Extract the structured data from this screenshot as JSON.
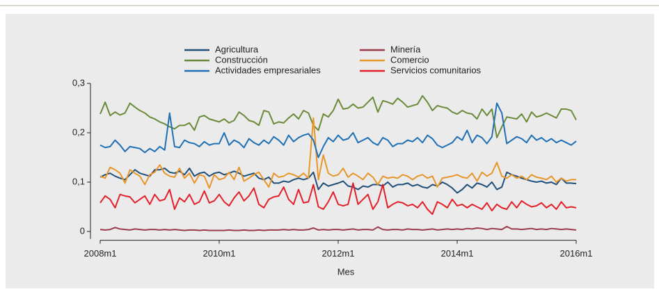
{
  "chart_data": {
    "type": "line",
    "x_label": "Mes",
    "categories": [
      "2008m1",
      null,
      null,
      null,
      null,
      null,
      null,
      null,
      null,
      null,
      null,
      null,
      null,
      null,
      null,
      null,
      null,
      null,
      null,
      null,
      null,
      null,
      null,
      null,
      "2010m1",
      null,
      null,
      null,
      null,
      null,
      null,
      null,
      null,
      null,
      null,
      null,
      null,
      null,
      null,
      null,
      null,
      null,
      null,
      null,
      null,
      null,
      null,
      null,
      "2012m1",
      null,
      null,
      null,
      null,
      null,
      null,
      null,
      null,
      null,
      null,
      null,
      null,
      null,
      null,
      null,
      null,
      null,
      null,
      null,
      null,
      null,
      null,
      null,
      "2014m1",
      null,
      null,
      null,
      null,
      null,
      null,
      null,
      null,
      null,
      null,
      null,
      null,
      null,
      null,
      null,
      null,
      null,
      null,
      null,
      null,
      null,
      null,
      null,
      "2016m1"
    ],
    "ylim": [
      -0.015,
      0.3
    ],
    "yticks": [
      {
        "value": 0,
        "label": "0"
      },
      {
        "value": 0.1,
        "label": "0,1"
      },
      {
        "value": 0.2,
        "label": "0,2"
      },
      {
        "value": 0.3,
        "label": "0,3"
      }
    ],
    "grid": false,
    "legend": "top",
    "series": [
      {
        "name": "Agricultura",
        "color": "#1f4e79",
        "values": [
          0.11,
          0.115,
          0.118,
          0.112,
          0.108,
          0.105,
          0.115,
          0.125,
          0.118,
          0.115,
          0.112,
          0.125,
          0.125,
          0.128,
          0.12,
          0.118,
          0.122,
          0.115,
          0.128,
          0.112,
          0.118,
          0.12,
          0.112,
          0.118,
          0.12,
          0.115,
          0.118,
          0.122,
          0.118,
          0.112,
          0.115,
          0.118,
          0.108,
          0.105,
          0.11,
          0.098,
          0.098,
          0.102,
          0.1,
          0.105,
          0.108,
          0.105,
          0.108,
          0.12,
          0.085,
          0.098,
          0.092,
          0.095,
          0.098,
          0.102,
          0.092,
          0.09,
          0.085,
          0.092,
          0.09,
          0.095,
          0.095,
          0.092,
          0.1,
          0.09,
          0.095,
          0.095,
          0.098,
          0.092,
          0.095,
          0.09,
          0.088,
          0.095,
          0.092,
          0.1,
          0.095,
          0.088,
          0.078,
          0.085,
          0.095,
          0.088,
          0.098,
          0.095,
          0.09,
          0.1,
          0.085,
          0.09,
          0.12,
          0.115,
          0.112,
          0.108,
          0.105,
          0.102,
          0.1,
          0.102,
          0.098,
          0.1,
          0.095,
          0.108,
          0.098,
          0.098,
          0.097
        ]
      },
      {
        "name": "Minería",
        "color": "#9b3a4a",
        "values": [
          0.004,
          0.003,
          0.004,
          0.008,
          0.005,
          0.004,
          0.003,
          0.005,
          0.004,
          0.003,
          0.004,
          0.004,
          0.003,
          0.004,
          0.003,
          0.004,
          0.003,
          0.002,
          0.003,
          0.003,
          0.002,
          0.003,
          0.002,
          0.002,
          0.002,
          0.002,
          0.003,
          0.002,
          0.002,
          0.003,
          0.002,
          0.002,
          0.003,
          0.002,
          0.003,
          0.003,
          0.003,
          0.004,
          0.003,
          0.004,
          0.003,
          0.003,
          0.004,
          0.007,
          0.003,
          0.004,
          0.003,
          0.004,
          0.004,
          0.003,
          0.004,
          0.005,
          0.003,
          0.004,
          0.004,
          0.003,
          0.009,
          0.004,
          0.003,
          0.004,
          0.004,
          0.003,
          0.005,
          0.004,
          0.004,
          0.003,
          0.004,
          0.005,
          0.003,
          0.004,
          0.005,
          0.004,
          0.005,
          0.004,
          0.006,
          0.005,
          0.007,
          0.006,
          0.004,
          0.006,
          0.005,
          0.004,
          0.01,
          0.005,
          0.005,
          0.004,
          0.005,
          0.006,
          0.004,
          0.005,
          0.004,
          0.006,
          0.005,
          0.004,
          0.005,
          0.004,
          0.003
        ]
      },
      {
        "name": "Construcción",
        "color": "#6a8a3a",
        "values": [
          0.238,
          0.262,
          0.235,
          0.242,
          0.236,
          0.24,
          0.26,
          0.252,
          0.245,
          0.24,
          0.232,
          0.228,
          0.222,
          0.218,
          0.212,
          0.208,
          0.215,
          0.215,
          0.22,
          0.205,
          0.232,
          0.235,
          0.228,
          0.225,
          0.222,
          0.228,
          0.22,
          0.225,
          0.242,
          0.235,
          0.225,
          0.222,
          0.215,
          0.245,
          0.242,
          0.218,
          0.222,
          0.22,
          0.23,
          0.238,
          0.228,
          0.245,
          0.24,
          0.215,
          0.205,
          0.238,
          0.232,
          0.245,
          0.268,
          0.248,
          0.25,
          0.258,
          0.25,
          0.252,
          0.262,
          0.272,
          0.242,
          0.265,
          0.262,
          0.258,
          0.27,
          0.262,
          0.252,
          0.255,
          0.258,
          0.275,
          0.262,
          0.245,
          0.255,
          0.252,
          0.25,
          0.242,
          0.238,
          0.245,
          0.24,
          0.238,
          0.228,
          0.248,
          0.235,
          0.248,
          0.19,
          0.212,
          0.232,
          0.23,
          0.228,
          0.238,
          0.222,
          0.242,
          0.232,
          0.235,
          0.24,
          0.235,
          0.23,
          0.248,
          0.248,
          0.245,
          0.226
        ]
      },
      {
        "name": "Comercio",
        "color": "#e8962a",
        "values": [
          0.112,
          0.108,
          0.13,
          0.125,
          0.118,
          0.098,
          0.125,
          0.118,
          0.112,
          0.095,
          0.115,
          0.12,
          0.135,
          0.118,
          0.112,
          0.11,
          0.128,
          0.108,
          0.118,
          0.098,
          0.115,
          0.112,
          0.088,
          0.115,
          0.105,
          0.108,
          0.12,
          0.105,
          0.13,
          0.102,
          0.108,
          0.115,
          0.12,
          0.105,
          0.09,
          0.118,
          0.11,
          0.112,
          0.118,
          0.115,
          0.11,
          0.118,
          0.108,
          0.23,
          0.105,
          0.155,
          0.118,
          0.112,
          0.115,
          0.128,
          0.11,
          0.118,
          0.112,
          0.105,
          0.118,
          0.11,
          0.095,
          0.112,
          0.108,
          0.11,
          0.108,
          0.115,
          0.112,
          0.105,
          0.112,
          0.115,
          0.108,
          0.112,
          0.09,
          0.108,
          0.11,
          0.112,
          0.115,
          0.11,
          0.108,
          0.118,
          0.102,
          0.12,
          0.112,
          0.118,
          0.14,
          0.112,
          0.108,
          0.115,
          0.108,
          0.112,
          0.105,
          0.115,
          0.11,
          0.108,
          0.105,
          0.112,
          0.1,
          0.108,
          0.102,
          0.105,
          0.105
        ]
      },
      {
        "name": "Actividades empresariales",
        "color": "#1f6fb5",
        "values": [
          0.175,
          0.17,
          0.172,
          0.185,
          0.175,
          0.162,
          0.172,
          0.17,
          0.168,
          0.16,
          0.168,
          0.162,
          0.172,
          0.165,
          0.24,
          0.172,
          0.17,
          0.185,
          0.18,
          0.178,
          0.172,
          0.182,
          0.175,
          0.178,
          0.178,
          0.2,
          0.175,
          0.185,
          0.18,
          0.17,
          0.188,
          0.18,
          0.175,
          0.185,
          0.178,
          0.192,
          0.185,
          0.175,
          0.195,
          0.182,
          0.19,
          0.195,
          0.198,
          0.185,
          0.15,
          0.172,
          0.19,
          0.182,
          0.195,
          0.185,
          0.188,
          0.2,
          0.18,
          0.185,
          0.19,
          0.18,
          0.175,
          0.19,
          0.185,
          0.172,
          0.178,
          0.178,
          0.185,
          0.182,
          0.19,
          0.18,
          0.195,
          0.188,
          0.175,
          0.17,
          0.175,
          0.18,
          0.192,
          0.185,
          0.205,
          0.18,
          0.195,
          0.19,
          0.178,
          0.192,
          0.26,
          0.24,
          0.178,
          0.185,
          0.192,
          0.188,
          0.18,
          0.195,
          0.185,
          0.19,
          0.182,
          0.188,
          0.18,
          0.185,
          0.18,
          0.175,
          0.183
        ]
      },
      {
        "name": "Servicios comunitarios",
        "color": "#e3202a",
        "values": [
          0.058,
          0.072,
          0.065,
          0.048,
          0.075,
          0.072,
          0.07,
          0.058,
          0.065,
          0.072,
          0.055,
          0.075,
          0.062,
          0.065,
          0.085,
          0.045,
          0.068,
          0.06,
          0.075,
          0.055,
          0.06,
          0.082,
          0.058,
          0.062,
          0.075,
          0.06,
          0.052,
          0.068,
          0.08,
          0.062,
          0.072,
          0.088,
          0.055,
          0.048,
          0.065,
          0.07,
          0.072,
          0.09,
          0.065,
          0.055,
          0.085,
          0.058,
          0.06,
          0.095,
          0.05,
          0.045,
          0.06,
          0.08,
          0.055,
          0.052,
          0.055,
          0.098,
          0.055,
          0.065,
          0.075,
          0.045,
          0.06,
          0.095,
          0.048,
          0.055,
          0.06,
          0.058,
          0.052,
          0.055,
          0.048,
          0.06,
          0.045,
          0.035,
          0.06,
          0.055,
          0.048,
          0.065,
          0.052,
          0.055,
          0.048,
          0.055,
          0.05,
          0.045,
          0.058,
          0.042,
          0.055,
          0.048,
          0.045,
          0.06,
          0.048,
          0.062,
          0.055,
          0.05,
          0.052,
          0.058,
          0.048,
          0.055,
          0.045,
          0.06,
          0.048,
          0.05,
          0.048
        ]
      }
    ]
  }
}
